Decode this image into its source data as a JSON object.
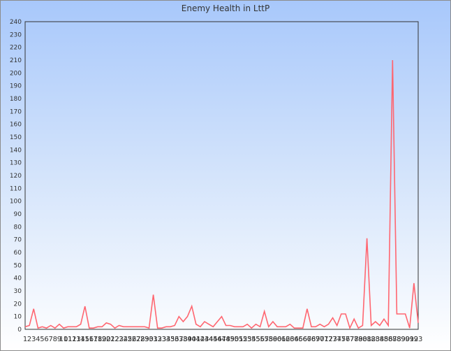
{
  "chart_data": {
    "type": "line",
    "title": "Enemy Health in LttP",
    "xlabel": "",
    "ylabel": "",
    "ylim": [
      0,
      240
    ],
    "ytick_step": 10,
    "grid": false,
    "legend": null,
    "line_color": "#ff6670",
    "categories": [
      1,
      2,
      3,
      4,
      5,
      6,
      7,
      8,
      9,
      10,
      11,
      12,
      13,
      14,
      15,
      16,
      17,
      18,
      19,
      20,
      21,
      22,
      23,
      24,
      25,
      26,
      27,
      28,
      29,
      30,
      31,
      32,
      33,
      34,
      35,
      36,
      37,
      38,
      39,
      40,
      41,
      42,
      43,
      44,
      45,
      46,
      47,
      48,
      49,
      50,
      51,
      52,
      53,
      54,
      55,
      56,
      57,
      58,
      59,
      60,
      61,
      62,
      63,
      64,
      65,
      66,
      67,
      68,
      69,
      70,
      71,
      72,
      73,
      74,
      75,
      76,
      77,
      78,
      79,
      80,
      81,
      82,
      83,
      84,
      85,
      86,
      87,
      88,
      89,
      90,
      91,
      92,
      93
    ],
    "values": [
      2,
      3,
      16,
      1,
      2,
      1,
      3,
      1,
      4,
      1,
      2,
      2,
      2,
      4,
      18,
      1,
      1,
      2,
      2,
      5,
      4,
      1,
      3,
      2,
      2,
      2,
      2,
      2,
      2,
      1,
      27,
      1,
      1,
      2,
      2,
      3,
      10,
      6,
      10,
      18,
      4,
      2,
      6,
      4,
      2,
      6,
      10,
      3,
      3,
      2,
      2,
      2,
      4,
      1,
      4,
      2,
      14,
      2,
      6,
      2,
      2,
      2,
      4,
      1,
      1,
      1,
      16,
      2,
      2,
      4,
      2,
      4,
      9,
      3,
      12,
      12,
      1,
      8,
      1,
      3,
      71,
      3,
      6,
      3,
      8,
      3,
      210,
      12,
      12,
      12,
      1,
      36,
      5
    ]
  }
}
